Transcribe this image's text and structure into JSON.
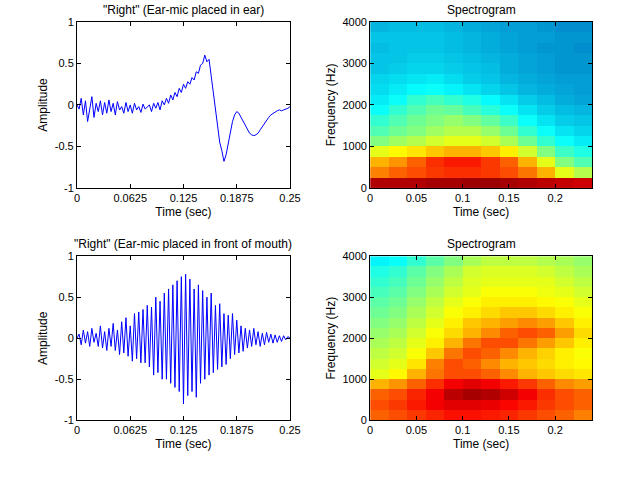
{
  "chart_data": [
    {
      "type": "line",
      "title": "\"Right\" (Ear-mic placed in ear)",
      "xlabel": "Time (sec)",
      "ylabel": "Amplitude",
      "color": "#0000ff",
      "x": [
        0,
        0.0025,
        0.005,
        0.0075,
        0.01,
        0.0125,
        0.015,
        0.0175,
        0.02,
        0.0225,
        0.025,
        0.0275,
        0.03,
        0.0325,
        0.035,
        0.0375,
        0.04,
        0.0425,
        0.045,
        0.0475,
        0.05,
        0.0525,
        0.055,
        0.0575,
        0.06,
        0.0625,
        0.065,
        0.0675,
        0.07,
        0.0725,
        0.075,
        0.0775,
        0.08,
        0.0825,
        0.085,
        0.0875,
        0.09,
        0.0925,
        0.095,
        0.0975,
        0.1,
        0.1025,
        0.105,
        0.1075,
        0.11,
        0.1125,
        0.115,
        0.1175,
        0.12,
        0.1225,
        0.125,
        0.1275,
        0.13,
        0.1325,
        0.135,
        0.1375,
        0.14,
        0.1425,
        0.145,
        0.1475,
        0.15,
        0.1525,
        0.155,
        0.1575,
        0.16,
        0.1625,
        0.165,
        0.1675,
        0.17,
        0.1725,
        0.175,
        0.1775,
        0.18,
        0.1825,
        0.185,
        0.1875,
        0.19,
        0.1925,
        0.195,
        0.1975,
        0.2,
        0.2025,
        0.205,
        0.2075,
        0.21,
        0.2125,
        0.215,
        0.2175,
        0.22,
        0.2225,
        0.225,
        0.2275,
        0.23,
        0.2325,
        0.235,
        0.2375,
        0.24,
        0.2425,
        0.245,
        0.2475,
        0.25
      ],
      "values": [
        0,
        -0.05,
        0.08,
        -0.12,
        0.05,
        -0.2,
        -0.05,
        0.1,
        -0.15,
        0.02,
        -0.08,
        0.05,
        -0.12,
        0.03,
        -0.1,
        0.06,
        -0.08,
        0.02,
        -0.12,
        0.04,
        -0.06,
        -0.02,
        -0.1,
        0.03,
        -0.08,
        0,
        -0.1,
        0.02,
        -0.06,
        -0.02,
        -0.09,
        0.01,
        -0.05,
        -0.03,
        0,
        -0.08,
        0.02,
        -0.04,
        0.03,
        -0.06,
        0.05,
        0,
        0.08,
        0.02,
        0.12,
        0.06,
        0.15,
        0.1,
        0.2,
        0.15,
        0.25,
        0.2,
        0.28,
        0.25,
        0.33,
        0.3,
        0.4,
        0.38,
        0.48,
        0.5,
        0.6,
        0.52,
        0.55,
        0.35,
        0.15,
        -0.1,
        -0.3,
        -0.45,
        -0.55,
        -0.68,
        -0.6,
        -0.45,
        -0.3,
        -0.2,
        -0.12,
        -0.08,
        -0.1,
        -0.15,
        -0.2,
        -0.25,
        -0.3,
        -0.34,
        -0.36,
        -0.37,
        -0.36,
        -0.34,
        -0.3,
        -0.26,
        -0.22,
        -0.18,
        -0.15,
        -0.12,
        -0.1,
        -0.08,
        -0.07,
        -0.06,
        -0.07,
        -0.06,
        -0.05,
        -0.04,
        -0.02
      ],
      "xlim": [
        0,
        0.25
      ],
      "ylim": [
        -1,
        1
      ],
      "xticks": [
        0,
        0.0625,
        0.125,
        0.1875,
        0.25
      ],
      "yticks": [
        -1,
        -0.5,
        0,
        0.5,
        1
      ]
    },
    {
      "type": "heatmap",
      "title": "Spectrogram",
      "xlabel": "Time (sec)",
      "ylabel": "Frequency (Hz)",
      "x": [
        0.01,
        0.03,
        0.05,
        0.07,
        0.09,
        0.11,
        0.13,
        0.15,
        0.17,
        0.19,
        0.21,
        0.23
      ],
      "y": [
        125,
        375,
        625,
        875,
        1125,
        1375,
        1625,
        1875,
        2125,
        2375,
        2625,
        2875,
        3125,
        3375,
        3625,
        3875
      ],
      "z": [
        [
          9.5,
          9.5,
          9.5,
          9.6,
          9.6,
          9.7,
          9.7,
          9.6,
          9.5,
          9.4,
          9.3,
          9.2
        ],
        [
          7.5,
          7.8,
          8,
          8.2,
          8.3,
          8.3,
          8.2,
          8,
          7.6,
          7,
          6,
          5.5
        ],
        [
          7,
          7.3,
          7.8,
          8.3,
          8.5,
          8.5,
          8.2,
          7.8,
          7,
          6,
          5,
          4.5
        ],
        [
          6,
          6.3,
          6.5,
          6.8,
          7,
          7,
          6.8,
          6.4,
          5.8,
          5,
          4.3,
          4
        ],
        [
          5,
          5.3,
          5.5,
          5.8,
          6,
          6,
          5.8,
          5.4,
          4.8,
          4.2,
          3.8,
          3.5
        ],
        [
          4.5,
          4.8,
          5,
          5.3,
          5.5,
          5.5,
          5.2,
          4.8,
          4.2,
          3.8,
          3.4,
          3.2
        ],
        [
          4.2,
          4.5,
          4.8,
          5,
          5.2,
          5,
          4.7,
          4.3,
          3.8,
          3.4,
          3.1,
          3
        ],
        [
          3.8,
          4.2,
          4.5,
          4.8,
          4.7,
          4.4,
          4.1,
          3.8,
          3.4,
          3.1,
          2.9,
          2.8
        ],
        [
          3.5,
          3.8,
          4.2,
          4.4,
          4.2,
          4,
          3.7,
          3.4,
          3.1,
          2.9,
          2.7,
          2.6
        ],
        [
          3.3,
          3.5,
          3.7,
          3.8,
          3.6,
          3.4,
          3.2,
          3,
          2.8,
          2.7,
          2.6,
          2.5
        ],
        [
          3.2,
          3.3,
          3.4,
          3.5,
          3.3,
          3.1,
          3,
          2.8,
          2.7,
          2.6,
          2.5,
          2.5
        ],
        [
          3,
          3.1,
          3.2,
          3.2,
          3.1,
          3,
          2.9,
          2.7,
          2.6,
          2.5,
          2.4,
          2.4
        ],
        [
          3,
          3,
          3.1,
          3.1,
          3,
          2.9,
          2.8,
          2.7,
          2.6,
          2.5,
          2.4,
          2.4
        ],
        [
          2.9,
          3,
          3,
          3,
          2.9,
          2.8,
          2.7,
          2.6,
          2.5,
          2.4,
          2.4,
          2.3
        ],
        [
          3,
          3,
          3,
          3,
          2.9,
          2.8,
          2.7,
          2.6,
          2.5,
          2.5,
          2.4,
          2.4
        ],
        [
          2.8,
          2.9,
          2.9,
          2.9,
          2.8,
          2.7,
          2.6,
          2.5,
          2.5,
          2.4,
          2.3,
          2.3
        ]
      ],
      "zlim": [
        0,
        10
      ],
      "xlim": [
        0,
        0.24
      ],
      "ylim": [
        0,
        4000
      ],
      "xticks": [
        0,
        0.05,
        0.1,
        0.15,
        0.2
      ],
      "yticks": [
        0,
        1000,
        2000,
        3000,
        4000
      ]
    },
    {
      "type": "line",
      "title": "\"Right\" (Ear-mic placed in front of mouth)",
      "xlabel": "Time (sec)",
      "ylabel": "Amplitude",
      "color": "#0000ff",
      "x": [
        0,
        0.0025,
        0.005,
        0.0075,
        0.01,
        0.0125,
        0.015,
        0.0175,
        0.02,
        0.0225,
        0.025,
        0.0275,
        0.03,
        0.0325,
        0.035,
        0.0375,
        0.04,
        0.0425,
        0.045,
        0.0475,
        0.05,
        0.0525,
        0.055,
        0.0575,
        0.06,
        0.0625,
        0.065,
        0.0675,
        0.07,
        0.0725,
        0.075,
        0.0775,
        0.08,
        0.0825,
        0.085,
        0.0875,
        0.09,
        0.0925,
        0.095,
        0.0975,
        0.1,
        0.1025,
        0.105,
        0.1075,
        0.11,
        0.1125,
        0.115,
        0.1175,
        0.12,
        0.1225,
        0.125,
        0.1275,
        0.13,
        0.1325,
        0.135,
        0.1375,
        0.14,
        0.1425,
        0.145,
        0.1475,
        0.15,
        0.1525,
        0.155,
        0.1575,
        0.16,
        0.1625,
        0.165,
        0.1675,
        0.17,
        0.1725,
        0.175,
        0.1775,
        0.18,
        0.1825,
        0.185,
        0.1875,
        0.19,
        0.1925,
        0.195,
        0.1975,
        0.2,
        0.2025,
        0.205,
        0.2075,
        0.21,
        0.2125,
        0.215,
        0.2175,
        0.22,
        0.2225,
        0.225,
        0.2275,
        0.23,
        0.2325,
        0.235,
        0.2375,
        0.24,
        0.2425,
        0.245,
        0.2475,
        0.25
      ],
      "values": [
        0,
        0.05,
        -0.08,
        0.1,
        -0.06,
        0.08,
        -0.1,
        0.12,
        -0.05,
        0.06,
        -0.1,
        0.15,
        -0.12,
        0.08,
        -0.15,
        0.12,
        -0.1,
        0.18,
        -0.15,
        0.1,
        -0.2,
        0.2,
        -0.18,
        0.25,
        -0.22,
        0.15,
        -0.28,
        0.3,
        -0.25,
        0.32,
        -0.3,
        0.35,
        -0.3,
        0.4,
        -0.35,
        0.38,
        -0.45,
        0.5,
        -0.42,
        0.45,
        -0.5,
        0.55,
        -0.5,
        0.6,
        -0.55,
        0.65,
        -0.6,
        0.7,
        -0.65,
        0.75,
        -0.8,
        0.78,
        -0.7,
        0.72,
        -0.65,
        0.6,
        -0.72,
        0.65,
        -0.55,
        0.58,
        -0.5,
        0.5,
        -0.45,
        0.55,
        -0.42,
        0.4,
        -0.38,
        0.42,
        -0.35,
        0.3,
        -0.32,
        0.28,
        -0.25,
        0.3,
        -0.2,
        0.22,
        -0.18,
        0.15,
        -0.16,
        0.12,
        -0.12,
        0.1,
        -0.1,
        0.12,
        -0.08,
        0.08,
        -0.1,
        0.06,
        -0.08,
        0.07,
        -0.05,
        0.05,
        -0.06,
        0.04,
        -0.05,
        0.03,
        -0.04,
        0.03,
        -0.02,
        0.02,
        0
      ],
      "xlim": [
        0,
        0.25
      ],
      "ylim": [
        -1,
        1
      ],
      "xticks": [
        0,
        0.0625,
        0.125,
        0.1875,
        0.25
      ],
      "yticks": [
        -1,
        -0.5,
        0,
        0.5,
        1
      ]
    },
    {
      "type": "heatmap",
      "title": "Spectrogram",
      "xlabel": "Time (sec)",
      "ylabel": "Frequency (Hz)",
      "x": [
        0.01,
        0.03,
        0.05,
        0.07,
        0.09,
        0.11,
        0.13,
        0.15,
        0.17,
        0.19,
        0.21,
        0.23
      ],
      "y": [
        125,
        375,
        625,
        875,
        1125,
        1375,
        1625,
        1875,
        2125,
        2375,
        2625,
        2875,
        3125,
        3375,
        3625,
        3875
      ],
      "z": [
        [
          7.8,
          8,
          8.2,
          8.4,
          8.6,
          8.6,
          8.5,
          8.4,
          8.2,
          8,
          7.8,
          7.5
        ],
        [
          8,
          8.2,
          8.5,
          8.8,
          9,
          9,
          8.9,
          8.7,
          8.5,
          8.2,
          8,
          7.8
        ],
        [
          7.8,
          8,
          8.4,
          8.8,
          9.4,
          9.6,
          9.5,
          9.2,
          8.8,
          8.3,
          8,
          7.8
        ],
        [
          7,
          7.3,
          7.8,
          8.3,
          8.8,
          9,
          8.8,
          8.5,
          8.2,
          7.8,
          7.4,
          7.2
        ],
        [
          6,
          6.3,
          7,
          7.6,
          8,
          8,
          7.8,
          7.4,
          7,
          6.8,
          6.6,
          6.5
        ],
        [
          5.8,
          6,
          6.5,
          7.5,
          8,
          7.8,
          7.4,
          7,
          6.8,
          6.6,
          6.4,
          6.3
        ],
        [
          5.6,
          5.8,
          6.2,
          6.8,
          7.6,
          8,
          7.8,
          7.4,
          7,
          6.7,
          6.4,
          6.2
        ],
        [
          5.4,
          5.6,
          6,
          6.4,
          7,
          7.6,
          8,
          8,
          7.6,
          7.2,
          6.8,
          6.4
        ],
        [
          5.2,
          5.4,
          5.8,
          6.2,
          6.6,
          7,
          7.4,
          7.8,
          8,
          7.8,
          7.2,
          6.6
        ],
        [
          5,
          5.2,
          5.6,
          6,
          6.4,
          6.8,
          7,
          7.2,
          7.4,
          7.2,
          6.8,
          6.4
        ],
        [
          4.8,
          5,
          5.4,
          5.8,
          6.2,
          6.4,
          6.6,
          6.8,
          6.8,
          6.6,
          6.4,
          6.2
        ],
        [
          4.6,
          4.8,
          5.2,
          5.6,
          6,
          6.2,
          6.4,
          6.4,
          6.4,
          6.3,
          6.2,
          6
        ],
        [
          4.4,
          4.6,
          5,
          5.4,
          5.8,
          6,
          6.2,
          6.2,
          6.2,
          6.1,
          6,
          5.8
        ],
        [
          4.2,
          4.4,
          4.8,
          5.2,
          5.6,
          5.9,
          6,
          6,
          6,
          6,
          5.8,
          5.6
        ],
        [
          4,
          4.2,
          4.6,
          5,
          5.4,
          5.8,
          5.9,
          5.9,
          5.9,
          5.8,
          5.6,
          5.4
        ],
        [
          3.6,
          3.8,
          4.2,
          4.6,
          5,
          5.4,
          5.6,
          5.6,
          5.6,
          5.5,
          5.4,
          5.2
        ]
      ],
      "zlim": [
        0,
        10
      ],
      "xlim": [
        0,
        0.24
      ],
      "ylim": [
        0,
        4000
      ],
      "xticks": [
        0,
        0.05,
        0.1,
        0.15,
        0.2
      ],
      "yticks": [
        0,
        1000,
        2000,
        3000,
        4000
      ]
    }
  ]
}
